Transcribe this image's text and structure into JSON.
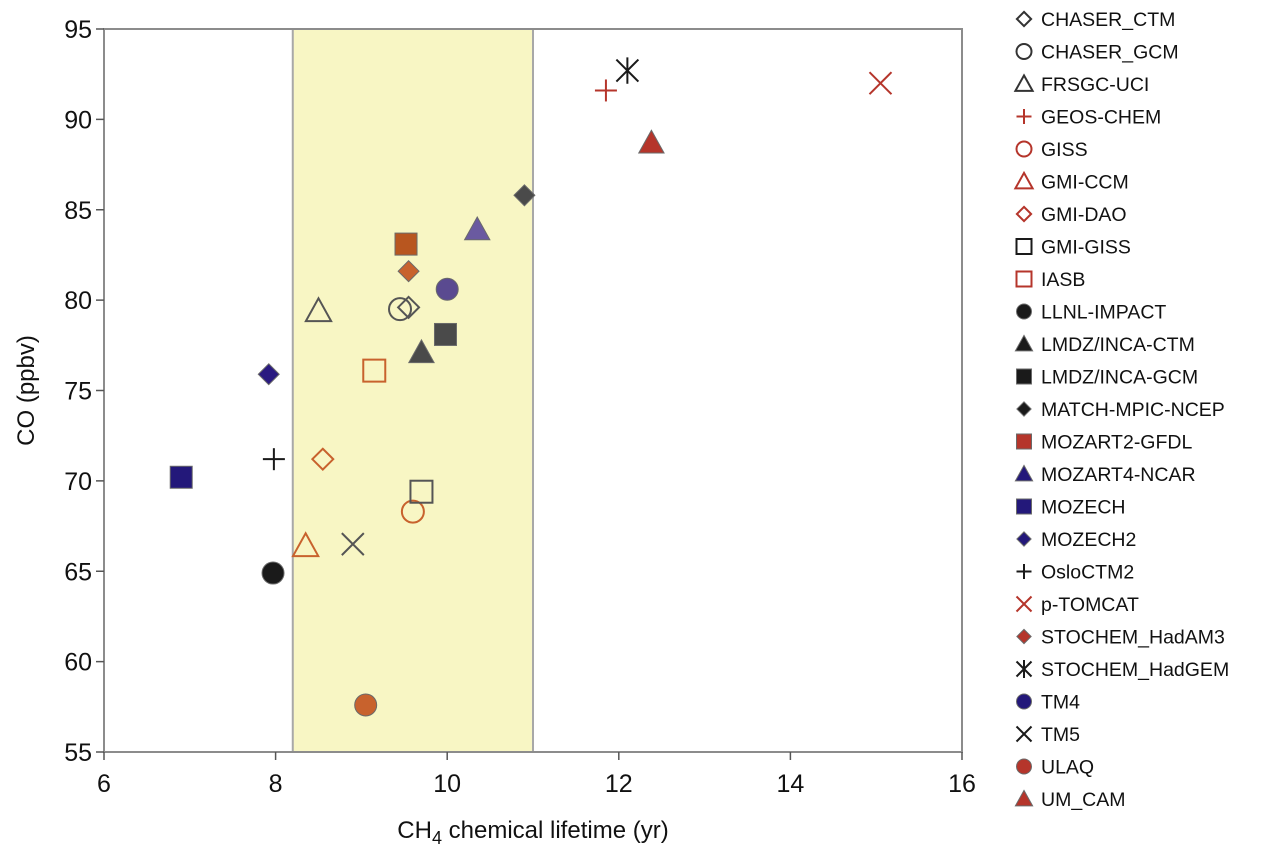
{
  "chart_data": {
    "type": "scatter",
    "title": "",
    "xlabel_main": "CH",
    "xlabel_sub": "4",
    "xlabel_rest": " chemical lifetime (yr)",
    "ylabel": "CO (ppbv)",
    "xlim": [
      6,
      16
    ],
    "ylim": [
      55,
      95
    ],
    "x_ticks": [
      6,
      8,
      10,
      12,
      14,
      16
    ],
    "y_ticks": [
      55,
      60,
      65,
      70,
      75,
      80,
      85,
      90,
      95
    ],
    "grid": false,
    "legend_position": "right",
    "shaded_band": {
      "x_from": 8.2,
      "x_to": 11.0,
      "color": "#f8f6c4"
    },
    "series": [
      {
        "name": "CHASER_CTM",
        "marker": "diamond",
        "filled": false,
        "color": "#555555",
        "x": 9.55,
        "y": 79.6
      },
      {
        "name": "CHASER_GCM",
        "marker": "circle",
        "filled": false,
        "color": "#555555",
        "x": 9.45,
        "y": 79.5
      },
      {
        "name": "FRSGC-UCI",
        "marker": "triangle",
        "filled": false,
        "color": "#555555",
        "x": 8.5,
        "y": 79.4
      },
      {
        "name": "GEOS-CHEM",
        "marker": "plus",
        "filled": false,
        "color": "#b5352b",
        "x": 11.85,
        "y": 91.6
      },
      {
        "name": "GISS",
        "marker": "circle",
        "filled": false,
        "color": "#c8622d",
        "x": 9.6,
        "y": 68.3
      },
      {
        "name": "GMI-CCM",
        "marker": "triangle",
        "filled": false,
        "color": "#c8622d",
        "x": 8.35,
        "y": 66.4
      },
      {
        "name": "GMI-DAO",
        "marker": "diamond",
        "filled": false,
        "color": "#c8622d",
        "x": 8.55,
        "y": 71.2
      },
      {
        "name": "GMI-GISS",
        "marker": "square",
        "filled": false,
        "color": "#555555",
        "x": 9.7,
        "y": 69.4
      },
      {
        "name": "IASB",
        "marker": "square",
        "filled": false,
        "color": "#c8622d",
        "x": 9.15,
        "y": 76.1
      },
      {
        "name": "LLNL-IMPACT",
        "marker": "circle",
        "filled": true,
        "color": "#1a1a1a",
        "x": 7.97,
        "y": 64.9
      },
      {
        "name": "LMDZ/INCA-CTM",
        "marker": "triangle",
        "filled": true,
        "color": "#4a4a4a",
        "x": 9.7,
        "y": 77.1
      },
      {
        "name": "LMDZ/INCA-GCM",
        "marker": "square",
        "filled": true,
        "color": "#4a4a4a",
        "x": 9.98,
        "y": 78.1
      },
      {
        "name": "MATCH-MPIC-NCEP",
        "marker": "diamond",
        "filled": true,
        "color": "#4a4a4a",
        "x": 10.9,
        "y": 85.8
      },
      {
        "name": "MOZART2-GFDL",
        "marker": "square",
        "filled": true,
        "color": "#b8561f",
        "x": 9.52,
        "y": 83.1
      },
      {
        "name": "MOZART4-NCAR",
        "marker": "triangle",
        "filled": true,
        "color": "#6a5aa0",
        "x": 10.35,
        "y": 83.9
      },
      {
        "name": "MOZECH",
        "marker": "square",
        "filled": true,
        "color": "#23187a",
        "x": 6.9,
        "y": 70.2
      },
      {
        "name": "MOZECH2",
        "marker": "diamond",
        "filled": true,
        "color": "#2a1a80",
        "x": 7.92,
        "y": 75.9
      },
      {
        "name": "OsloCTM2",
        "marker": "plus",
        "filled": false,
        "color": "#1a1a1a",
        "x": 7.98,
        "y": 71.2
      },
      {
        "name": "p-TOMCAT",
        "marker": "x",
        "filled": false,
        "color": "#b5352b",
        "x": 15.05,
        "y": 92.0
      },
      {
        "name": "STOCHEM_HadAM3",
        "marker": "diamond",
        "filled": true,
        "color": "#c8622d",
        "x": 9.55,
        "y": 81.6
      },
      {
        "name": "STOCHEM_HadGEM",
        "marker": "asterisk",
        "filled": false,
        "color": "#1a1a1a",
        "x": 12.1,
        "y": 92.7
      },
      {
        "name": "TM4",
        "marker": "circle",
        "filled": true,
        "color": "#5a4a90",
        "x": 10.0,
        "y": 80.6
      },
      {
        "name": "TM5",
        "marker": "x",
        "filled": false,
        "color": "#555555",
        "x": 8.9,
        "y": 66.5
      },
      {
        "name": "ULAQ",
        "marker": "circle",
        "filled": true,
        "color": "#c8622d",
        "x": 9.05,
        "y": 57.6
      },
      {
        "name": "UM_CAM",
        "marker": "triangle",
        "filled": true,
        "color": "#b5352b",
        "x": 12.38,
        "y": 88.7
      }
    ],
    "legend_colors": {
      "CHASER_CTM": "#333333",
      "CHASER_GCM": "#333333",
      "FRSGC-UCI": "#333333",
      "GEOS-CHEM": "#b5352b",
      "GISS": "#b5352b",
      "GMI-CCM": "#b5352b",
      "GMI-DAO": "#b5352b",
      "GMI-GISS": "#1a1a1a",
      "IASB": "#b5352b",
      "LLNL-IMPACT": "#1a1a1a",
      "LMDZ/INCA-CTM": "#1a1a1a",
      "LMDZ/INCA-GCM": "#1a1a1a",
      "MATCH-MPIC-NCEP": "#1a1a1a",
      "MOZART2-GFDL": "#b5352b",
      "MOZART4-NCAR": "#23187a",
      "MOZECH": "#23187a",
      "MOZECH2": "#23187a",
      "OsloCTM2": "#1a1a1a",
      "p-TOMCAT": "#b5352b",
      "STOCHEM_HadAM3": "#b5352b",
      "STOCHEM_HadGEM": "#1a1a1a",
      "TM4": "#23187a",
      "TM5": "#1a1a1a",
      "ULAQ": "#b5352b",
      "UM_CAM": "#b5352b"
    }
  }
}
